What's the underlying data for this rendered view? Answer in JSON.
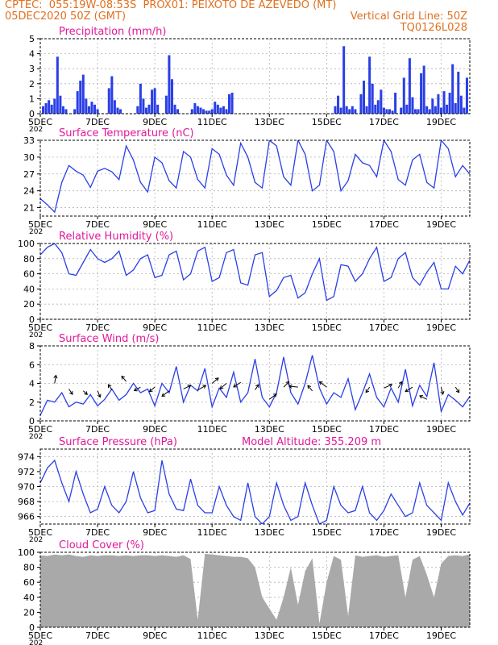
{
  "header": {
    "line1_left": "CPTEC:  055:19W-08:53S  PROX01: PEIXOTO DE AZEVEDO (MT)",
    "line2_left": "05DEC2020 50Z (GMT)",
    "line2_right": "Vertical Grid Line: 50Z",
    "line3_right": "TQ0126L028"
  },
  "colors": {
    "header": "#e07020",
    "title": "#e0189a",
    "series": "#2a3fe6",
    "cloud": "#a9a9a9"
  },
  "x_axis": {
    "start_day": 5,
    "end_day": 20,
    "tick_days": [
      5,
      7,
      9,
      11,
      13,
      15,
      17,
      19
    ],
    "tick_labels": [
      "5DEC",
      "7DEC",
      "9DEC",
      "11DEC",
      "13DEC",
      "15DEC",
      "17DEC",
      "19DEC"
    ],
    "corner_label": "202"
  },
  "chart_data": [
    {
      "id": "precip",
      "type": "bar",
      "title": "Precipitation (mm/h)",
      "ylim": [
        0,
        5
      ],
      "yticks": [
        0,
        1,
        2,
        3,
        4,
        5
      ],
      "x": [
        5.1,
        5.2,
        5.3,
        5.4,
        5.5,
        5.6,
        5.7,
        5.8,
        5.9,
        6.2,
        6.3,
        6.4,
        6.5,
        6.6,
        6.7,
        6.8,
        6.9,
        7.0,
        7.4,
        7.5,
        7.6,
        7.7,
        7.8,
        8.4,
        8.5,
        8.6,
        8.7,
        8.8,
        8.9,
        9.0,
        9.1,
        9.4,
        9.5,
        9.6,
        9.7,
        9.8,
        10.3,
        10.4,
        10.5,
        10.6,
        10.7,
        10.8,
        10.9,
        11.0,
        11.1,
        11.2,
        11.3,
        11.4,
        11.5,
        11.6,
        11.7,
        15.3,
        15.4,
        15.5,
        15.6,
        15.7,
        15.8,
        15.9,
        16.0,
        16.2,
        16.3,
        16.4,
        16.5,
        16.6,
        16.7,
        16.8,
        16.9,
        17.0,
        17.1,
        17.2,
        17.3,
        17.4,
        17.6,
        17.7,
        17.8,
        17.9,
        18.0,
        18.1,
        18.2,
        18.3,
        18.4,
        18.5,
        18.6,
        18.7,
        18.8,
        18.9,
        19.0,
        19.1,
        19.2,
        19.3,
        19.4,
        19.5,
        19.6,
        19.7,
        19.8,
        19.9
      ],
      "values": [
        0.5,
        0.7,
        0.9,
        0.6,
        1.0,
        3.8,
        1.2,
        0.5,
        0.3,
        0.3,
        1.5,
        2.2,
        2.6,
        1.0,
        0.5,
        0.8,
        0.6,
        0.3,
        1.7,
        2.5,
        0.9,
        0.4,
        0.3,
        0.5,
        2.0,
        1.0,
        0.4,
        0.6,
        1.6,
        1.7,
        0.6,
        1.2,
        3.9,
        2.3,
        0.6,
        0.3,
        0.3,
        0.7,
        0.5,
        0.4,
        0.3,
        0.2,
        0.2,
        0.3,
        0.8,
        0.6,
        0.4,
        0.5,
        0.3,
        1.3,
        1.4,
        0.5,
        1.2,
        0.4,
        4.5,
        0.5,
        0.3,
        0.5,
        0.3,
        1.3,
        2.2,
        0.5,
        3.8,
        2.0,
        0.6,
        0.9,
        1.6,
        0.4,
        0.3,
        0.3,
        0.2,
        1.4,
        0.4,
        2.4,
        0.6,
        3.7,
        1.1,
        0.3,
        0.3,
        2.7,
        3.2,
        0.5,
        0.3,
        1.0,
        0.5,
        1.3,
        0.4,
        1.5,
        0.6,
        1.4,
        3.3,
        0.7,
        2.8,
        1.2,
        0.4,
        2.4
      ]
    },
    {
      "id": "temp",
      "type": "line",
      "title": "Surface Temperature (nC)",
      "ylim": [
        19.5,
        33
      ],
      "yticks": [
        21,
        24,
        27,
        30,
        33
      ],
      "x": [
        5.0,
        5.25,
        5.5,
        5.75,
        6.0,
        6.25,
        6.5,
        6.75,
        7.0,
        7.25,
        7.5,
        7.75,
        8.0,
        8.25,
        8.5,
        8.75,
        9.0,
        9.25,
        9.5,
        9.75,
        10.0,
        10.25,
        10.5,
        10.75,
        11.0,
        11.25,
        11.5,
        11.75,
        12.0,
        12.25,
        12.5,
        12.75,
        13.0,
        13.25,
        13.5,
        13.75,
        14.0,
        14.25,
        14.5,
        14.75,
        15.0,
        15.25,
        15.5,
        15.75,
        16.0,
        16.25,
        16.5,
        16.75,
        17.0,
        17.25,
        17.5,
        17.75,
        18.0,
        18.25,
        18.5,
        18.75,
        19.0,
        19.25,
        19.5,
        19.75,
        20.0
      ],
      "values": [
        22.6,
        21.5,
        20.2,
        25.5,
        28.5,
        27.5,
        26.8,
        24.6,
        27.5,
        28.0,
        27.4,
        26.0,
        32.0,
        29.5,
        25.5,
        23.8,
        30.0,
        29.0,
        25.8,
        24.5,
        31.0,
        30.0,
        26.0,
        24.5,
        31.5,
        30.5,
        26.8,
        25.0,
        32.5,
        30.0,
        25.5,
        24.5,
        33.0,
        32.0,
        26.5,
        25.0,
        33.0,
        30.5,
        24.0,
        25.0,
        33.0,
        31.0,
        24.0,
        25.8,
        30.5,
        29.0,
        28.5,
        26.5,
        33.0,
        31.0,
        26.0,
        25.0,
        29.5,
        30.5,
        25.5,
        24.5,
        33.0,
        31.5,
        26.5,
        28.5,
        27.0
      ]
    },
    {
      "id": "rh",
      "type": "line",
      "title": "Relative Humidity (%)",
      "ylim": [
        0,
        100
      ],
      "yticks": [
        0,
        20,
        40,
        60,
        80,
        100
      ],
      "x": [
        5.0,
        5.25,
        5.5,
        5.75,
        6.0,
        6.25,
        6.5,
        6.75,
        7.0,
        7.25,
        7.5,
        7.75,
        8.0,
        8.25,
        8.5,
        8.75,
        9.0,
        9.25,
        9.5,
        9.75,
        10.0,
        10.25,
        10.5,
        10.75,
        11.0,
        11.25,
        11.5,
        11.75,
        12.0,
        12.25,
        12.5,
        12.75,
        13.0,
        13.25,
        13.5,
        13.75,
        14.0,
        14.25,
        14.5,
        14.75,
        15.0,
        15.25,
        15.5,
        15.75,
        16.0,
        16.25,
        16.5,
        16.75,
        17.0,
        17.25,
        17.5,
        17.75,
        18.0,
        18.25,
        18.5,
        18.75,
        19.0,
        19.25,
        19.5,
        19.75,
        20.0
      ],
      "values": [
        85,
        95,
        100,
        88,
        60,
        58,
        75,
        92,
        80,
        75,
        80,
        90,
        58,
        65,
        80,
        85,
        55,
        58,
        85,
        90,
        52,
        60,
        90,
        95,
        50,
        55,
        88,
        92,
        48,
        45,
        85,
        88,
        30,
        38,
        55,
        58,
        28,
        35,
        60,
        80,
        25,
        30,
        72,
        70,
        50,
        60,
        80,
        95,
        50,
        55,
        80,
        88,
        55,
        45,
        62,
        75,
        40,
        40,
        70,
        60,
        78
      ]
    },
    {
      "id": "wind",
      "type": "line",
      "title": "Surface Wind (m/s)",
      "ylim": [
        0,
        8
      ],
      "yticks": [
        0,
        2,
        4,
        6,
        8
      ],
      "x": [
        5.0,
        5.25,
        5.5,
        5.75,
        6.0,
        6.25,
        6.5,
        6.75,
        7.0,
        7.25,
        7.5,
        7.75,
        8.0,
        8.25,
        8.5,
        8.75,
        9.0,
        9.25,
        9.5,
        9.75,
        10.0,
        10.25,
        10.5,
        10.75,
        11.0,
        11.25,
        11.5,
        11.75,
        12.0,
        12.25,
        12.5,
        12.75,
        13.0,
        13.25,
        13.5,
        13.75,
        14.0,
        14.25,
        14.5,
        14.75,
        15.0,
        15.25,
        15.5,
        15.75,
        16.0,
        16.25,
        16.5,
        16.75,
        17.0,
        17.25,
        17.5,
        17.75,
        18.0,
        18.25,
        18.5,
        18.75,
        19.0,
        19.25,
        19.5,
        19.75,
        20.0
      ],
      "values": [
        0.6,
        2.2,
        2.0,
        3.0,
        1.5,
        2.0,
        1.8,
        2.8,
        1.6,
        2.3,
        3.4,
        2.2,
        2.8,
        4.0,
        3.0,
        3.4,
        1.6,
        4.0,
        3.0,
        5.8,
        2.0,
        3.8,
        3.2,
        5.6,
        1.5,
        3.5,
        2.5,
        5.2,
        2.0,
        3.0,
        6.6,
        2.5,
        1.5,
        3.0,
        6.8,
        3.0,
        1.8,
        4.0,
        7.0,
        3.5,
        1.8,
        3.0,
        2.5,
        4.5,
        1.2,
        3.0,
        5.0,
        2.5,
        1.5,
        3.5,
        2.0,
        5.5,
        1.6,
        3.8,
        2.6,
        6.2,
        1.0,
        2.8,
        2.2,
        1.5,
        2.6
      ],
      "arrows_x": [
        5.5,
        6.0,
        6.5,
        7.0,
        7.5,
        8.0,
        8.5,
        9.0,
        9.5,
        10.0,
        10.5,
        11.0,
        11.5,
        12.0,
        12.5,
        13.0,
        13.5,
        14.0,
        14.5,
        15.0,
        16.5,
        17.0,
        17.5,
        18.0,
        18.5,
        19.0,
        19.5
      ],
      "arrows_y": [
        4.0,
        3.4,
        3.2,
        3.2,
        3.3,
        4.2,
        3.6,
        3.6,
        3.2,
        3.4,
        3.3,
        4.0,
        4.0,
        4.1,
        3.3,
        2.3,
        3.6,
        3.6,
        3.2,
        3.6,
        3.6,
        3.5,
        3.5,
        3.6,
        2.3,
        3.6,
        3.6
      ],
      "arrows_u": [
        0.15,
        0.4,
        0.45,
        0.3,
        -0.4,
        -0.5,
        -0.7,
        -0.6,
        -0.8,
        0.8,
        0.9,
        0.7,
        -0.7,
        -0.8,
        0.4,
        0.8,
        0.6,
        -1.0,
        -0.5,
        -0.8,
        -0.4,
        0.9,
        0.4,
        -0.8,
        -0.8,
        0.2,
        0.4
      ],
      "arrows_v": [
        0.9,
        -0.6,
        -0.4,
        -0.7,
        0.6,
        0.6,
        -0.4,
        -0.5,
        -0.6,
        0.4,
        0.5,
        0.6,
        -0.6,
        -0.5,
        0.6,
        0.6,
        0.6,
        0.1,
        0.6,
        0.6,
        -0.6,
        0.4,
        0.7,
        -0.5,
        0.4,
        -0.8,
        -0.6
      ]
    },
    {
      "id": "pres",
      "type": "line",
      "title": "Surface Pressure (hPa)",
      "title2": "Model Altitude: 355.209  m",
      "ylim": [
        965,
        975
      ],
      "yticks": [
        966,
        968,
        970,
        972,
        974
      ],
      "x": [
        5.0,
        5.25,
        5.5,
        5.75,
        6.0,
        6.25,
        6.5,
        6.75,
        7.0,
        7.25,
        7.5,
        7.75,
        8.0,
        8.25,
        8.5,
        8.75,
        9.0,
        9.25,
        9.5,
        9.75,
        10.0,
        10.25,
        10.5,
        10.75,
        11.0,
        11.25,
        11.5,
        11.75,
        12.0,
        12.25,
        12.5,
        12.75,
        13.0,
        13.25,
        13.5,
        13.75,
        14.0,
        14.25,
        14.5,
        14.75,
        15.0,
        15.25,
        15.5,
        15.75,
        16.0,
        16.25,
        16.5,
        16.75,
        17.0,
        17.25,
        17.5,
        17.75,
        18.0,
        18.25,
        18.5,
        18.75,
        19.0,
        19.25,
        19.5,
        19.75,
        20.0
      ],
      "values": [
        970.5,
        972.5,
        973.5,
        970.5,
        968.0,
        972.0,
        969.0,
        966.5,
        967.0,
        970.0,
        967.5,
        966.5,
        968.0,
        972.0,
        968.5,
        966.5,
        966.8,
        973.5,
        969.0,
        967.0,
        966.8,
        971.0,
        967.5,
        966.5,
        966.5,
        970.0,
        967.5,
        966.0,
        965.5,
        970.5,
        966.0,
        965.0,
        966.0,
        970.5,
        967.5,
        965.5,
        966.0,
        970.5,
        967.5,
        965.0,
        965.5,
        970.0,
        967.5,
        966.5,
        966.8,
        970.0,
        966.5,
        965.5,
        966.8,
        969.0,
        967.5,
        966.0,
        966.5,
        970.5,
        967.5,
        966.5,
        965.5,
        970.5,
        968.0,
        966.2,
        967.8
      ]
    },
    {
      "id": "cloud",
      "type": "area",
      "title": "Cloud Cover (%)",
      "ylim": [
        0,
        100
      ],
      "yticks": [
        0,
        20,
        40,
        60,
        80,
        100
      ],
      "x": [
        5.0,
        5.25,
        5.5,
        5.75,
        6.0,
        6.25,
        6.5,
        6.75,
        7.0,
        7.25,
        7.5,
        7.75,
        8.0,
        8.25,
        8.5,
        8.75,
        9.0,
        9.25,
        9.5,
        9.75,
        10.0,
        10.25,
        10.5,
        10.75,
        11.0,
        11.25,
        11.5,
        11.75,
        12.0,
        12.25,
        12.5,
        12.75,
        13.0,
        13.25,
        13.5,
        13.75,
        14.0,
        14.25,
        14.5,
        14.75,
        15.0,
        15.25,
        15.5,
        15.75,
        16.0,
        16.25,
        16.5,
        16.75,
        17.0,
        17.25,
        17.5,
        17.75,
        18.0,
        18.25,
        18.5,
        18.75,
        19.0,
        19.25,
        19.5,
        19.75,
        20.0
      ],
      "values": [
        96,
        95,
        97,
        96,
        97,
        95,
        94,
        96,
        95,
        96,
        96,
        95,
        96,
        95,
        96,
        96,
        95,
        96,
        95,
        94,
        96,
        91,
        10,
        98,
        97,
        96,
        95,
        94,
        94,
        92,
        80,
        40,
        25,
        10,
        40,
        80,
        30,
        75,
        92,
        5,
        60,
        95,
        90,
        15,
        96,
        94,
        95,
        96,
        94,
        95,
        96,
        40,
        90,
        95,
        70,
        40,
        85,
        95,
        96,
        95,
        97
      ]
    }
  ]
}
